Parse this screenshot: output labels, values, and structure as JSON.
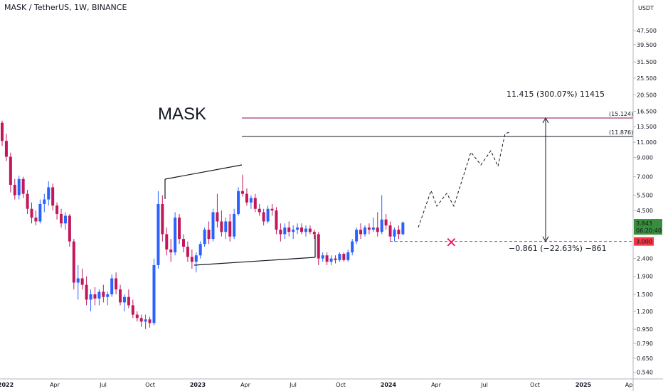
{
  "header": {
    "title": "MASK / TetherUS, 1W, BINANCE"
  },
  "currency_badge": "USDT",
  "colors": {
    "up": "#2962ff",
    "down": "#c2185b",
    "text": "#131722",
    "target": "#880e4f",
    "price_badge": "#388e3c",
    "stop_badge": "#f23645"
  },
  "chart_data": {
    "type": "candlestick",
    "title": "MASK / TetherUS, 1W, BINANCE",
    "y_scale": "log",
    "ylim": [
      0.5,
      60
    ],
    "y_ticks": [
      {
        "v": 47.5,
        "l": "47.500"
      },
      {
        "v": 39.5,
        "l": "39.500"
      },
      {
        "v": 31.5,
        "l": "31.500"
      },
      {
        "v": 25.5,
        "l": "25.500"
      },
      {
        "v": 20.5,
        "l": "20.500"
      },
      {
        "v": 16.5,
        "l": "16.500"
      },
      {
        "v": 13.5,
        "l": "13.500"
      },
      {
        "v": 11.0,
        "l": "11.000"
      },
      {
        "v": 9.0,
        "l": "9.000"
      },
      {
        "v": 7.0,
        "l": "7.000"
      },
      {
        "v": 5.5,
        "l": "5.500"
      },
      {
        "v": 4.5,
        "l": "4.500"
      },
      {
        "v": 2.4,
        "l": "2.400"
      },
      {
        "v": 1.9,
        "l": "1.900"
      },
      {
        "v": 1.5,
        "l": "1.500"
      },
      {
        "v": 1.2,
        "l": "1.200"
      },
      {
        "v": 0.95,
        "l": "0.950"
      },
      {
        "v": 0.79,
        "l": "0.790"
      },
      {
        "v": 0.65,
        "l": "0.650"
      },
      {
        "v": 0.54,
        "l": "0.540"
      }
    ],
    "x_ticks": [
      {
        "l": "2022",
        "bold": true
      },
      {
        "l": "Apr",
        "bold": false
      },
      {
        "l": "Jul",
        "bold": false
      },
      {
        "l": "Oct",
        "bold": false
      },
      {
        "l": "2023",
        "bold": true
      },
      {
        "l": "Apr",
        "bold": false
      },
      {
        "l": "Jul",
        "bold": false
      },
      {
        "l": "Oct",
        "bold": false
      },
      {
        "l": "2024",
        "bold": true
      },
      {
        "l": "Apr",
        "bold": false
      },
      {
        "l": "Jul",
        "bold": false
      },
      {
        "l": "Oct",
        "bold": false
      },
      {
        "l": "2025",
        "bold": true
      },
      {
        "l": "Ap",
        "bold": false
      }
    ],
    "current_price": {
      "value": "3.843",
      "countdown": "06:20:40"
    },
    "stop_level": {
      "value": 3.0,
      "label": "3.000"
    },
    "target_levels": [
      {
        "value": 15.124,
        "label": "(15.124)"
      },
      {
        "value": 11.876,
        "label": "(11.876)"
      }
    ],
    "measure_up": "11.415 (300.07%) 11415",
    "measure_down": "−0.861 (−22.63%) −861",
    "annotation": "MASK",
    "stop_marker": "✕",
    "candles": [
      [
        14.2,
        14.6,
        10.5,
        11.2
      ],
      [
        11.2,
        12.3,
        8.6,
        9.1
      ],
      [
        9.1,
        9.6,
        5.7,
        6.3
      ],
      [
        6.3,
        6.8,
        5.2,
        5.5
      ],
      [
        5.5,
        7.1,
        5.2,
        6.8
      ],
      [
        6.8,
        7.0,
        5.3,
        5.6
      ],
      [
        5.6,
        5.9,
        4.3,
        4.6
      ],
      [
        4.6,
        5.0,
        3.8,
        4.1
      ],
      [
        4.1,
        4.5,
        3.7,
        3.9
      ],
      [
        3.9,
        5.2,
        3.8,
        4.9
      ],
      [
        4.9,
        5.6,
        4.4,
        5.2
      ],
      [
        5.2,
        6.6,
        4.8,
        6.1
      ],
      [
        6.1,
        6.4,
        4.5,
        4.8
      ],
      [
        4.8,
        5.0,
        4.0,
        4.3
      ],
      [
        4.3,
        4.6,
        3.6,
        3.8
      ],
      [
        3.8,
        4.4,
        3.5,
        4.2
      ],
      [
        4.2,
        4.3,
        2.8,
        3.0
      ],
      [
        3.0,
        3.1,
        1.6,
        1.75
      ],
      [
        1.75,
        2.2,
        1.4,
        1.85
      ],
      [
        1.85,
        2.1,
        1.6,
        1.7
      ],
      [
        1.7,
        1.9,
        1.3,
        1.4
      ],
      [
        1.4,
        1.6,
        1.2,
        1.5
      ],
      [
        1.5,
        1.65,
        1.3,
        1.42
      ],
      [
        1.42,
        1.6,
        1.3,
        1.55
      ],
      [
        1.55,
        1.7,
        1.35,
        1.45
      ],
      [
        1.45,
        1.55,
        1.3,
        1.5
      ],
      [
        1.5,
        1.95,
        1.45,
        1.85
      ],
      [
        1.85,
        2.0,
        1.5,
        1.6
      ],
      [
        1.6,
        1.7,
        1.3,
        1.35
      ],
      [
        1.35,
        1.5,
        1.2,
        1.45
      ],
      [
        1.45,
        1.6,
        1.25,
        1.3
      ],
      [
        1.3,
        1.4,
        1.1,
        1.15
      ],
      [
        1.15,
        1.2,
        1.05,
        1.1
      ],
      [
        1.1,
        1.15,
        0.98,
        1.05
      ],
      [
        1.05,
        1.15,
        0.95,
        1.08
      ],
      [
        1.08,
        1.12,
        0.97,
        1.03
      ],
      [
        1.03,
        2.4,
        1.0,
        2.2
      ],
      [
        2.2,
        5.8,
        2.1,
        4.9
      ],
      [
        4.9,
        5.5,
        3.0,
        3.3
      ],
      [
        3.3,
        3.6,
        2.5,
        2.7
      ],
      [
        2.7,
        3.1,
        2.3,
        2.6
      ],
      [
        2.6,
        4.4,
        2.5,
        4.1
      ],
      [
        4.1,
        4.3,
        2.9,
        3.1
      ],
      [
        3.1,
        3.3,
        2.6,
        2.8
      ],
      [
        2.8,
        3.0,
        2.3,
        2.45
      ],
      [
        2.45,
        2.7,
        2.1,
        2.3
      ],
      [
        2.3,
        2.6,
        2.0,
        2.5
      ],
      [
        2.5,
        3.0,
        2.4,
        2.9
      ],
      [
        2.9,
        3.6,
        2.8,
        3.5
      ],
      [
        3.5,
        3.9,
        2.9,
        3.1
      ],
      [
        3.1,
        4.6,
        3.0,
        4.4
      ],
      [
        4.4,
        5.6,
        3.6,
        3.9
      ],
      [
        3.9,
        4.5,
        3.2,
        3.4
      ],
      [
        3.4,
        4.1,
        3.1,
        3.9
      ],
      [
        3.9,
        4.3,
        3.0,
        3.2
      ],
      [
        3.2,
        4.6,
        3.1,
        4.3
      ],
      [
        4.3,
        6.1,
        4.2,
        5.8
      ],
      [
        5.8,
        7.2,
        5.4,
        5.6
      ],
      [
        5.6,
        6.0,
        4.8,
        5.0
      ],
      [
        5.0,
        5.5,
        4.6,
        5.3
      ],
      [
        5.3,
        5.6,
        4.4,
        4.6
      ],
      [
        4.6,
        4.9,
        4.2,
        4.4
      ],
      [
        4.4,
        4.6,
        3.7,
        3.9
      ],
      [
        3.9,
        4.8,
        3.8,
        4.6
      ],
      [
        4.6,
        4.9,
        4.2,
        4.5
      ],
      [
        4.5,
        4.7,
        3.3,
        3.5
      ],
      [
        3.5,
        3.8,
        3.0,
        3.3
      ],
      [
        3.3,
        3.8,
        3.1,
        3.6
      ],
      [
        3.6,
        3.9,
        3.2,
        3.4
      ],
      [
        3.4,
        3.7,
        3.1,
        3.5
      ],
      [
        3.5,
        3.8,
        3.3,
        3.6
      ],
      [
        3.6,
        3.8,
        3.3,
        3.4
      ],
      [
        3.4,
        3.7,
        3.2,
        3.55
      ],
      [
        3.55,
        3.7,
        3.3,
        3.4
      ],
      [
        3.4,
        3.5,
        3.1,
        3.3
      ],
      [
        3.3,
        3.4,
        2.2,
        2.4
      ],
      [
        2.4,
        2.6,
        2.3,
        2.5
      ],
      [
        2.5,
        2.6,
        2.2,
        2.3
      ],
      [
        2.3,
        2.5,
        2.2,
        2.4
      ],
      [
        2.4,
        2.5,
        2.25,
        2.35
      ],
      [
        2.35,
        2.6,
        2.3,
        2.55
      ],
      [
        2.55,
        2.6,
        2.3,
        2.35
      ],
      [
        2.35,
        2.7,
        2.3,
        2.6
      ],
      [
        2.6,
        3.1,
        2.5,
        3.0
      ],
      [
        3.0,
        3.6,
        2.9,
        3.5
      ],
      [
        3.5,
        3.8,
        3.1,
        3.3
      ],
      [
        3.3,
        3.7,
        3.2,
        3.6
      ],
      [
        3.6,
        3.8,
        3.3,
        3.5
      ],
      [
        3.5,
        4.1,
        3.4,
        3.6
      ],
      [
        3.6,
        4.4,
        3.2,
        3.4
      ],
      [
        3.4,
        5.5,
        3.3,
        4.0
      ],
      [
        4.0,
        4.3,
        3.5,
        3.7
      ],
      [
        3.7,
        3.9,
        3.0,
        3.2
      ],
      [
        3.2,
        3.6,
        3.0,
        3.5
      ],
      [
        3.5,
        3.7,
        3.1,
        3.3
      ],
      [
        3.3,
        3.9,
        3.25,
        3.84
      ]
    ]
  }
}
